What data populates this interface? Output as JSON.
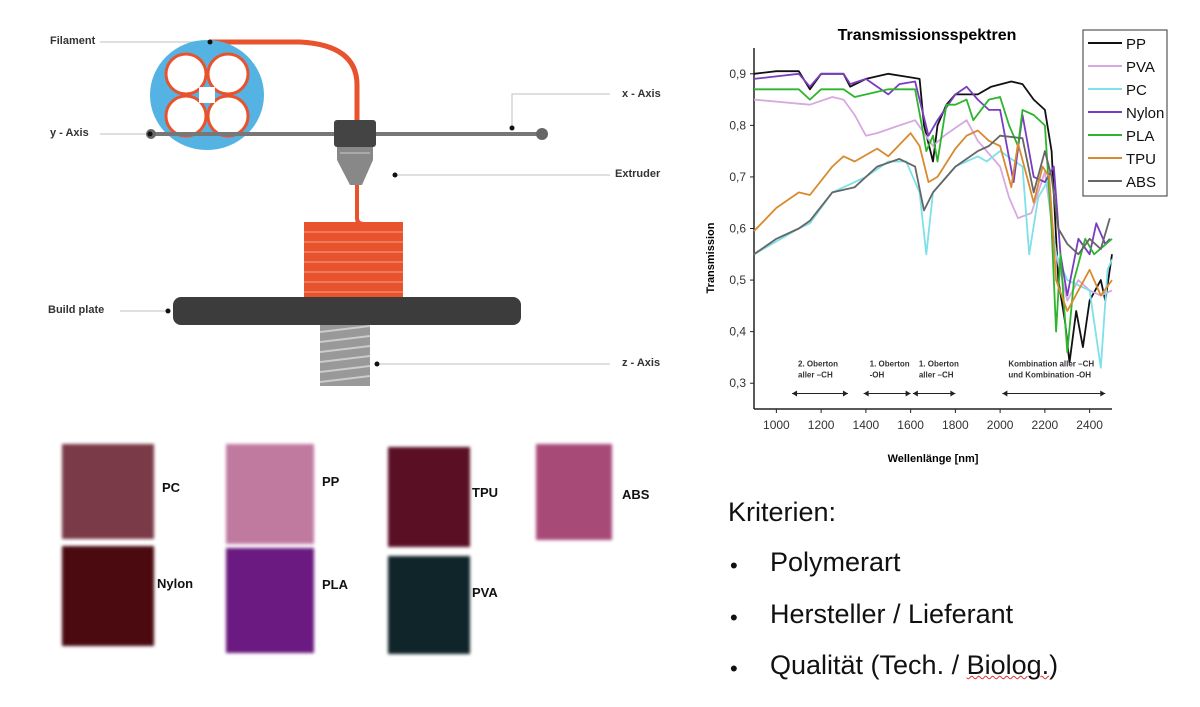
{
  "diagram": {
    "labels": {
      "filament": "Filament",
      "y_axis": "y - Axis",
      "x_axis": "x - Axis",
      "extruder": "Extruder",
      "build_plate": "Build plate",
      "z_axis": "z - Axis"
    },
    "colors": {
      "spool": "#55b3e3",
      "filament": "#e8522d",
      "plate": "#3c3c3c",
      "rod": "#777777"
    }
  },
  "samples": [
    {
      "label": "PC",
      "color": "#7a3a48"
    },
    {
      "label": "Nylon",
      "color": "#4a0a10"
    },
    {
      "label": "PP",
      "color": "#c07aa0"
    },
    {
      "label": "PLA",
      "color": "#6a1a80"
    },
    {
      "label": "TPU",
      "color": "#5a0f25"
    },
    {
      "label": "PVA",
      "color": "#10252a"
    },
    {
      "label": "ABS",
      "color": "#a84a78"
    }
  ],
  "criteria": {
    "title": "Kriterien:",
    "items": [
      "Polymerart",
      "Hersteller / Lieferant",
      "Qualität (Tech. / ",
      "Biolog.",
      ")"
    ]
  },
  "chart_data": {
    "type": "line",
    "title": "Transmissionsspektren",
    "xlabel": "Wellenlänge [nm]",
    "ylabel": "Transmission",
    "xlim": [
      900,
      2500
    ],
    "ylim": [
      0.25,
      0.95
    ],
    "xticks": [
      1000,
      1200,
      1400,
      1600,
      1800,
      2000,
      2200,
      2400
    ],
    "yticks": [
      "0,3",
      "0,4",
      "0,5",
      "0,6",
      "0,7",
      "0,8",
      "0,9"
    ],
    "ytick_values": [
      0.3,
      0.4,
      0.5,
      0.6,
      0.7,
      0.8,
      0.9
    ],
    "legend_position": "top-right",
    "annotations": [
      {
        "line1": "2. Oberton",
        "line2": "aller –CH",
        "range": [
          1070,
          1320
        ]
      },
      {
        "line1": "1. Oberton",
        "line2": "-OH",
        "range": [
          1390,
          1600
        ]
      },
      {
        "line1": "1. Oberton",
        "line2": "aller –CH",
        "range": [
          1610,
          1800
        ]
      },
      {
        "line1": "Kombination  aller –CH",
        "line2": "und Kombination -OH",
        "range": [
          2010,
          2470
        ]
      }
    ],
    "series": [
      {
        "name": "PP",
        "color": "#111111",
        "points": [
          [
            900,
            0.9
          ],
          [
            1000,
            0.905
          ],
          [
            1100,
            0.905
          ],
          [
            1150,
            0.87
          ],
          [
            1200,
            0.9
          ],
          [
            1300,
            0.9
          ],
          [
            1330,
            0.875
          ],
          [
            1400,
            0.89
          ],
          [
            1500,
            0.9
          ],
          [
            1600,
            0.893
          ],
          [
            1640,
            0.89
          ],
          [
            1660,
            0.8
          ],
          [
            1700,
            0.73
          ],
          [
            1720,
            0.8
          ],
          [
            1760,
            0.84
          ],
          [
            1800,
            0.86
          ],
          [
            1900,
            0.86
          ],
          [
            1960,
            0.875
          ],
          [
            2050,
            0.885
          ],
          [
            2100,
            0.88
          ],
          [
            2150,
            0.85
          ],
          [
            2200,
            0.83
          ],
          [
            2230,
            0.75
          ],
          [
            2260,
            0.5
          ],
          [
            2290,
            0.42
          ],
          [
            2310,
            0.34
          ],
          [
            2340,
            0.44
          ],
          [
            2370,
            0.37
          ],
          [
            2400,
            0.46
          ],
          [
            2450,
            0.5
          ],
          [
            2470,
            0.46
          ],
          [
            2500,
            0.55
          ]
        ]
      },
      {
        "name": "PVA",
        "color": "#d8a8e0",
        "points": [
          [
            900,
            0.85
          ],
          [
            1150,
            0.84
          ],
          [
            1250,
            0.855
          ],
          [
            1300,
            0.85
          ],
          [
            1350,
            0.82
          ],
          [
            1400,
            0.78
          ],
          [
            1450,
            0.785
          ],
          [
            1550,
            0.8
          ],
          [
            1620,
            0.81
          ],
          [
            1700,
            0.76
          ],
          [
            1750,
            0.78
          ],
          [
            1800,
            0.795
          ],
          [
            1850,
            0.81
          ],
          [
            1900,
            0.77
          ],
          [
            2000,
            0.72
          ],
          [
            2040,
            0.66
          ],
          [
            2080,
            0.62
          ],
          [
            2140,
            0.63
          ],
          [
            2200,
            0.71
          ],
          [
            2250,
            0.55
          ],
          [
            2300,
            0.46
          ],
          [
            2350,
            0.5
          ],
          [
            2400,
            0.48
          ],
          [
            2450,
            0.47
          ],
          [
            2500,
            0.48
          ]
        ]
      },
      {
        "name": "PC",
        "color": "#7ee0e8",
        "points": [
          [
            900,
            0.55
          ],
          [
            1100,
            0.6
          ],
          [
            1150,
            0.61
          ],
          [
            1250,
            0.67
          ],
          [
            1400,
            0.7
          ],
          [
            1500,
            0.73
          ],
          [
            1580,
            0.73
          ],
          [
            1640,
            0.67
          ],
          [
            1670,
            0.55
          ],
          [
            1700,
            0.67
          ],
          [
            1800,
            0.72
          ],
          [
            1900,
            0.74
          ],
          [
            1940,
            0.73
          ],
          [
            2000,
            0.75
          ],
          [
            2100,
            0.72
          ],
          [
            2130,
            0.55
          ],
          [
            2170,
            0.66
          ],
          [
            2210,
            0.69
          ],
          [
            2250,
            0.55
          ],
          [
            2300,
            0.5
          ],
          [
            2400,
            0.48
          ],
          [
            2450,
            0.33
          ],
          [
            2480,
            0.52
          ],
          [
            2500,
            0.54
          ]
        ]
      },
      {
        "name": "Nylon",
        "color": "#7a3cc0",
        "points": [
          [
            900,
            0.89
          ],
          [
            1100,
            0.9
          ],
          [
            1150,
            0.875
          ],
          [
            1200,
            0.9
          ],
          [
            1300,
            0.9
          ],
          [
            1330,
            0.88
          ],
          [
            1400,
            0.89
          ],
          [
            1500,
            0.86
          ],
          [
            1550,
            0.88
          ],
          [
            1620,
            0.885
          ],
          [
            1680,
            0.78
          ],
          [
            1720,
            0.81
          ],
          [
            1800,
            0.86
          ],
          [
            1850,
            0.875
          ],
          [
            1900,
            0.85
          ],
          [
            1950,
            0.83
          ],
          [
            2000,
            0.83
          ],
          [
            2060,
            0.69
          ],
          [
            2100,
            0.82
          ],
          [
            2150,
            0.7
          ],
          [
            2200,
            0.69
          ],
          [
            2240,
            0.72
          ],
          [
            2270,
            0.55
          ],
          [
            2300,
            0.47
          ],
          [
            2350,
            0.58
          ],
          [
            2400,
            0.55
          ],
          [
            2430,
            0.61
          ],
          [
            2470,
            0.57
          ],
          [
            2490,
            0.58
          ]
        ]
      },
      {
        "name": "PLA",
        "color": "#2db52d",
        "points": [
          [
            900,
            0.87
          ],
          [
            1100,
            0.87
          ],
          [
            1150,
            0.85
          ],
          [
            1200,
            0.87
          ],
          [
            1300,
            0.87
          ],
          [
            1350,
            0.855
          ],
          [
            1500,
            0.87
          ],
          [
            1620,
            0.87
          ],
          [
            1650,
            0.8
          ],
          [
            1670,
            0.75
          ],
          [
            1700,
            0.78
          ],
          [
            1720,
            0.73
          ],
          [
            1760,
            0.84
          ],
          [
            1800,
            0.84
          ],
          [
            1850,
            0.85
          ],
          [
            1880,
            0.81
          ],
          [
            1950,
            0.85
          ],
          [
            2000,
            0.855
          ],
          [
            2040,
            0.8
          ],
          [
            2080,
            0.76
          ],
          [
            2100,
            0.83
          ],
          [
            2150,
            0.82
          ],
          [
            2200,
            0.8
          ],
          [
            2230,
            0.6
          ],
          [
            2250,
            0.4
          ],
          [
            2270,
            0.55
          ],
          [
            2300,
            0.36
          ],
          [
            2330,
            0.5
          ],
          [
            2380,
            0.58
          ],
          [
            2420,
            0.55
          ],
          [
            2500,
            0.58
          ]
        ]
      },
      {
        "name": "TPU",
        "color": "#d98a2e",
        "points": [
          [
            900,
            0.595
          ],
          [
            1000,
            0.64
          ],
          [
            1100,
            0.67
          ],
          [
            1150,
            0.665
          ],
          [
            1250,
            0.72
          ],
          [
            1300,
            0.74
          ],
          [
            1350,
            0.73
          ],
          [
            1450,
            0.755
          ],
          [
            1500,
            0.74
          ],
          [
            1600,
            0.785
          ],
          [
            1640,
            0.76
          ],
          [
            1680,
            0.69
          ],
          [
            1720,
            0.7
          ],
          [
            1800,
            0.755
          ],
          [
            1850,
            0.78
          ],
          [
            1900,
            0.79
          ],
          [
            1950,
            0.77
          ],
          [
            2000,
            0.76
          ],
          [
            2050,
            0.68
          ],
          [
            2080,
            0.765
          ],
          [
            2120,
            0.7
          ],
          [
            2150,
            0.65
          ],
          [
            2190,
            0.72
          ],
          [
            2220,
            0.7
          ],
          [
            2250,
            0.5
          ],
          [
            2300,
            0.44
          ],
          [
            2350,
            0.48
          ],
          [
            2400,
            0.52
          ],
          [
            2450,
            0.47
          ],
          [
            2500,
            0.5
          ]
        ]
      },
      {
        "name": "ABS",
        "color": "#666666",
        "points": [
          [
            900,
            0.55
          ],
          [
            1000,
            0.58
          ],
          [
            1100,
            0.6
          ],
          [
            1150,
            0.615
          ],
          [
            1250,
            0.67
          ],
          [
            1350,
            0.68
          ],
          [
            1450,
            0.72
          ],
          [
            1550,
            0.735
          ],
          [
            1620,
            0.72
          ],
          [
            1660,
            0.635
          ],
          [
            1700,
            0.67
          ],
          [
            1800,
            0.72
          ],
          [
            1900,
            0.75
          ],
          [
            1950,
            0.76
          ],
          [
            2000,
            0.78
          ],
          [
            2100,
            0.775
          ],
          [
            2150,
            0.67
          ],
          [
            2200,
            0.75
          ],
          [
            2230,
            0.7
          ],
          [
            2260,
            0.6
          ],
          [
            2300,
            0.57
          ],
          [
            2350,
            0.55
          ],
          [
            2400,
            0.58
          ],
          [
            2450,
            0.56
          ],
          [
            2490,
            0.62
          ]
        ]
      }
    ]
  }
}
